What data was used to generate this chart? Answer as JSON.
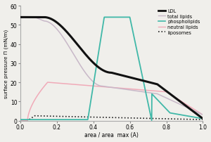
{
  "title": "",
  "xlabel": "area / area  max (A)",
  "ylabel": "surface pressure Π (mN/m)",
  "xlim": [
    0,
    1
  ],
  "ylim": [
    0,
    60
  ],
  "yticks": [
    0,
    10,
    20,
    30,
    40,
    50,
    60
  ],
  "xticks": [
    0,
    0.2,
    0.4,
    0.6,
    0.8,
    1
  ],
  "background_color": "#f0efeb",
  "ldl_color": "#111111",
  "total_lipids_color": "#c8b8c8",
  "phospholipids_color": "#40b8a8",
  "neutral_lipids_color": "#f0aab8",
  "liposomes_color": "#222222"
}
